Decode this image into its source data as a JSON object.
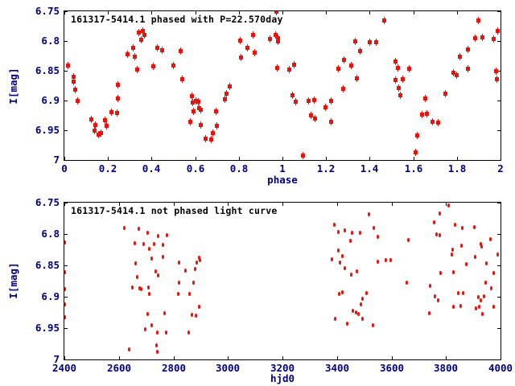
{
  "figure": {
    "background": "#ffffff",
    "marker_color": "#e8130c",
    "axis_text_color": "#000080",
    "title_color": "#000000"
  },
  "chart_data": [
    {
      "type": "scatter",
      "title": "161317-5414.1 phased with P=22.570day",
      "xlabel": "phase",
      "ylabel": "I[mag]",
      "marker": "square",
      "grid": false,
      "legend": "none",
      "xlim": [
        0,
        2
      ],
      "ylim": [
        7.0,
        6.75
      ],
      "xticks": [
        {
          "v": 0,
          "label": "0"
        },
        {
          "v": 0.2,
          "label": "0.2"
        },
        {
          "v": 0.4,
          "label": "0.4"
        },
        {
          "v": 0.6,
          "label": "0.6"
        },
        {
          "v": 0.8,
          "label": "0.8"
        },
        {
          "v": 1,
          "label": "1"
        },
        {
          "v": 1.2,
          "label": "1.2"
        },
        {
          "v": 1.4,
          "label": "1.4"
        },
        {
          "v": 1.6,
          "label": "1.6"
        },
        {
          "v": 1.8,
          "label": "1.8"
        },
        {
          "v": 2,
          "label": "2"
        }
      ],
      "yticks": [
        {
          "v": 6.75,
          "label": "6.75"
        },
        {
          "v": 6.8,
          "label": "6.8"
        },
        {
          "v": 6.85,
          "label": "6.85"
        },
        {
          "v": 6.9,
          "label": "6.9"
        },
        {
          "v": 6.95,
          "label": "6.95"
        },
        {
          "v": 7,
          "label": "7"
        }
      ],
      "points": [
        [
          0.015,
          6.841
        ],
        [
          0.042,
          6.86
        ],
        [
          0.044,
          6.868
        ],
        [
          0.049,
          6.882
        ],
        [
          0.06,
          6.901
        ],
        [
          0.125,
          6.932
        ],
        [
          0.139,
          6.95
        ],
        [
          0.143,
          6.941
        ],
        [
          0.158,
          6.957
        ],
        [
          0.169,
          6.955
        ],
        [
          0.187,
          6.933
        ],
        [
          0.193,
          6.942
        ],
        [
          0.215,
          6.92
        ],
        [
          0.242,
          6.921
        ],
        [
          0.245,
          6.896
        ],
        [
          0.247,
          6.873
        ],
        [
          0.288,
          6.822
        ],
        [
          0.315,
          6.811
        ],
        [
          0.322,
          6.827
        ],
        [
          0.335,
          6.848
        ],
        [
          0.34,
          6.786
        ],
        [
          0.352,
          6.798
        ],
        [
          0.358,
          6.783
        ],
        [
          0.368,
          6.79
        ],
        [
          0.409,
          6.843
        ],
        [
          0.426,
          6.811
        ],
        [
          0.448,
          6.816
        ],
        [
          0.499,
          6.841
        ],
        [
          0.535,
          6.817
        ],
        [
          0.541,
          6.864
        ],
        [
          0.578,
          6.936
        ],
        [
          0.584,
          6.893
        ],
        [
          0.59,
          6.904
        ],
        [
          0.592,
          6.918
        ],
        [
          0.605,
          6.9
        ],
        [
          0.615,
          6.902
        ],
        [
          0.619,
          6.913
        ],
        [
          0.627,
          6.915
        ],
        [
          0.627,
          6.941
        ],
        [
          0.648,
          6.964
        ],
        [
          0.674,
          6.966
        ],
        [
          0.68,
          6.955
        ],
        [
          0.695,
          6.918
        ],
        [
          0.699,
          6.943
        ],
        [
          0.738,
          6.898
        ],
        [
          0.744,
          6.889
        ],
        [
          0.76,
          6.877
        ],
        [
          0.806,
          6.799
        ],
        [
          0.809,
          6.828
        ],
        [
          0.84,
          6.811
        ],
        [
          0.867,
          6.79
        ],
        [
          0.873,
          6.819
        ],
        [
          0.941,
          6.796
        ],
        [
          0.969,
          6.79
        ],
        [
          0.972,
          6.751
        ],
        [
          0.975,
          6.845
        ],
        [
          0.978,
          6.795
        ],
        [
          0.981,
          6.801
        ],
        [
          1.033,
          6.848
        ],
        [
          1.045,
          6.891
        ],
        [
          1.052,
          6.84
        ],
        [
          1.06,
          6.902
        ],
        [
          1.095,
          6.992
        ],
        [
          1.119,
          6.9
        ],
        [
          1.132,
          6.925
        ],
        [
          1.144,
          6.899
        ],
        [
          1.15,
          6.93
        ],
        [
          1.199,
          6.911
        ],
        [
          1.224,
          6.9
        ],
        [
          1.224,
          6.936
        ],
        [
          1.255,
          6.846
        ],
        [
          1.277,
          6.88
        ],
        [
          1.282,
          6.832
        ],
        [
          1.314,
          6.841
        ],
        [
          1.335,
          6.801
        ],
        [
          1.341,
          6.863
        ],
        [
          1.355,
          6.817
        ],
        [
          1.402,
          6.802
        ],
        [
          1.429,
          6.802
        ],
        [
          1.467,
          6.765
        ],
        [
          1.517,
          6.865
        ],
        [
          1.519,
          6.835
        ],
        [
          1.531,
          6.845
        ],
        [
          1.535,
          6.879
        ],
        [
          1.539,
          6.891
        ],
        [
          1.55,
          6.864
        ],
        [
          1.583,
          6.847
        ],
        [
          1.609,
          6.987
        ],
        [
          1.617,
          6.959
        ],
        [
          1.64,
          6.923
        ],
        [
          1.654,
          6.897
        ],
        [
          1.664,
          6.922
        ],
        [
          1.688,
          6.936
        ],
        [
          1.713,
          6.937
        ],
        [
          1.746,
          6.888
        ],
        [
          1.783,
          6.853
        ],
        [
          1.8,
          6.858
        ],
        [
          1.814,
          6.826
        ],
        [
          1.849,
          6.814
        ],
        [
          1.851,
          6.847
        ],
        [
          1.885,
          6.795
        ],
        [
          1.9,
          6.766
        ],
        [
          1.918,
          6.794
        ],
        [
          1.968,
          6.796
        ],
        [
          1.98,
          6.85
        ],
        [
          1.984,
          6.864
        ],
        [
          1.986,
          6.783
        ]
      ]
    },
    {
      "type": "scatter",
      "title": "161317-5414.1 not phased light curve",
      "xlabel": "hjd0",
      "ylabel": "I[mag]",
      "marker": "dot",
      "grid": false,
      "legend": "none",
      "xlim": [
        2400,
        4000
      ],
      "ylim": [
        7.0,
        6.75
      ],
      "xticks": [
        {
          "v": 2400,
          "label": "2400"
        },
        {
          "v": 2600,
          "label": "2600"
        },
        {
          "v": 2800,
          "label": "2800"
        },
        {
          "v": 3000,
          "label": "3000"
        },
        {
          "v": 3200,
          "label": "3200"
        },
        {
          "v": 3400,
          "label": "3400"
        },
        {
          "v": 3600,
          "label": "3600"
        },
        {
          "v": 3800,
          "label": "3800"
        },
        {
          "v": 4000,
          "label": "4000"
        }
      ],
      "yticks": [
        {
          "v": 6.75,
          "label": "6.75"
        },
        {
          "v": 6.8,
          "label": "6.8"
        },
        {
          "v": 6.85,
          "label": "6.85"
        },
        {
          "v": 6.9,
          "label": "6.9"
        },
        {
          "v": 6.95,
          "label": "6.95"
        },
        {
          "v": 7,
          "label": "7"
        }
      ],
      "points": [
        [
          2400,
          6.814
        ],
        [
          2400,
          6.861
        ],
        [
          2400,
          6.888
        ],
        [
          2400,
          6.912
        ],
        [
          2400,
          6.933
        ],
        [
          2620,
          6.79
        ],
        [
          2637,
          6.984
        ],
        [
          2648,
          6.885
        ],
        [
          2658,
          6.815
        ],
        [
          2660,
          6.847
        ],
        [
          2668,
          6.868
        ],
        [
          2672,
          6.792
        ],
        [
          2675,
          6.886
        ],
        [
          2681,
          6.888
        ],
        [
          2691,
          6.816
        ],
        [
          2697,
          6.952
        ],
        [
          2705,
          6.798
        ],
        [
          2707,
          6.927
        ],
        [
          2709,
          6.885
        ],
        [
          2711,
          6.824
        ],
        [
          2711,
          6.895
        ],
        [
          2719,
          6.839
        ],
        [
          2721,
          6.946
        ],
        [
          2729,
          6.816
        ],
        [
          2734,
          6.859
        ],
        [
          2739,
          6.977
        ],
        [
          2740,
          6.957
        ],
        [
          2741,
          6.988
        ],
        [
          2743,
          6.803
        ],
        [
          2743,
          6.866
        ],
        [
          2763,
          6.817
        ],
        [
          2763,
          6.837
        ],
        [
          2768,
          6.926
        ],
        [
          2773,
          6.957
        ],
        [
          2776,
          6.802
        ],
        [
          2818,
          6.896
        ],
        [
          2820,
          6.845
        ],
        [
          2820,
          6.877
        ],
        [
          2843,
          6.858
        ],
        [
          2855,
          6.957
        ],
        [
          2860,
          6.895
        ],
        [
          2869,
          6.929
        ],
        [
          2875,
          6.877
        ],
        [
          2880,
          6.856
        ],
        [
          2882,
          6.93
        ],
        [
          2885,
          6.845
        ],
        [
          2894,
          6.916
        ],
        [
          2894,
          6.838
        ],
        [
          2897,
          6.842
        ],
        [
          3382,
          6.841
        ],
        [
          3389,
          6.785
        ],
        [
          3392,
          6.935
        ],
        [
          3404,
          6.826
        ],
        [
          3406,
          6.797
        ],
        [
          3409,
          6.895
        ],
        [
          3412,
          6.845
        ],
        [
          3419,
          6.835
        ],
        [
          3419,
          6.893
        ],
        [
          3428,
          6.794
        ],
        [
          3428,
          6.854
        ],
        [
          3438,
          6.943
        ],
        [
          3448,
          6.811
        ],
        [
          3451,
          6.865
        ],
        [
          3455,
          6.798
        ],
        [
          3458,
          6.922
        ],
        [
          3471,
          6.925
        ],
        [
          3473,
          6.86
        ],
        [
          3478,
          6.928
        ],
        [
          3485,
          6.798
        ],
        [
          3488,
          6.912
        ],
        [
          3495,
          6.903
        ],
        [
          3495,
          6.935
        ],
        [
          3508,
          6.894
        ],
        [
          3517,
          6.768
        ],
        [
          3532,
          6.946
        ],
        [
          3536,
          6.79
        ],
        [
          3549,
          6.804
        ],
        [
          3549,
          6.844
        ],
        [
          3579,
          6.842
        ],
        [
          3598,
          6.842
        ],
        [
          3655,
          6.878
        ],
        [
          3662,
          6.809
        ],
        [
          3740,
          6.926
        ],
        [
          3741,
          6.883
        ],
        [
          3755,
          6.782
        ],
        [
          3758,
          6.899
        ],
        [
          3765,
          6.8
        ],
        [
          3771,
          6.906
        ],
        [
          3777,
          6.767
        ],
        [
          3778,
          6.802
        ],
        [
          3781,
          6.862
        ],
        [
          3810,
          6.754
        ],
        [
          3820,
          6.833
        ],
        [
          3824,
          6.825
        ],
        [
          3827,
          6.861
        ],
        [
          3827,
          6.916
        ],
        [
          3834,
          6.785
        ],
        [
          3845,
          6.894
        ],
        [
          3854,
          6.915
        ],
        [
          3856,
          6.819
        ],
        [
          3859,
          6.791
        ],
        [
          3862,
          6.894
        ],
        [
          3874,
          6.848
        ],
        [
          3903,
          6.789
        ],
        [
          3906,
          6.837
        ],
        [
          3911,
          6.918
        ],
        [
          3920,
          6.901
        ],
        [
          3923,
          6.916
        ],
        [
          3927,
          6.816
        ],
        [
          3928,
          6.906
        ],
        [
          3930,
          6.82
        ],
        [
          3935,
          6.927
        ],
        [
          3940,
          6.899
        ],
        [
          3945,
          6.877
        ],
        [
          3948,
          6.847
        ],
        [
          3962,
          6.808
        ],
        [
          3967,
          6.886
        ],
        [
          3974,
          6.862
        ],
        [
          3974,
          6.916
        ],
        [
          3989,
          6.833
        ]
      ]
    }
  ]
}
